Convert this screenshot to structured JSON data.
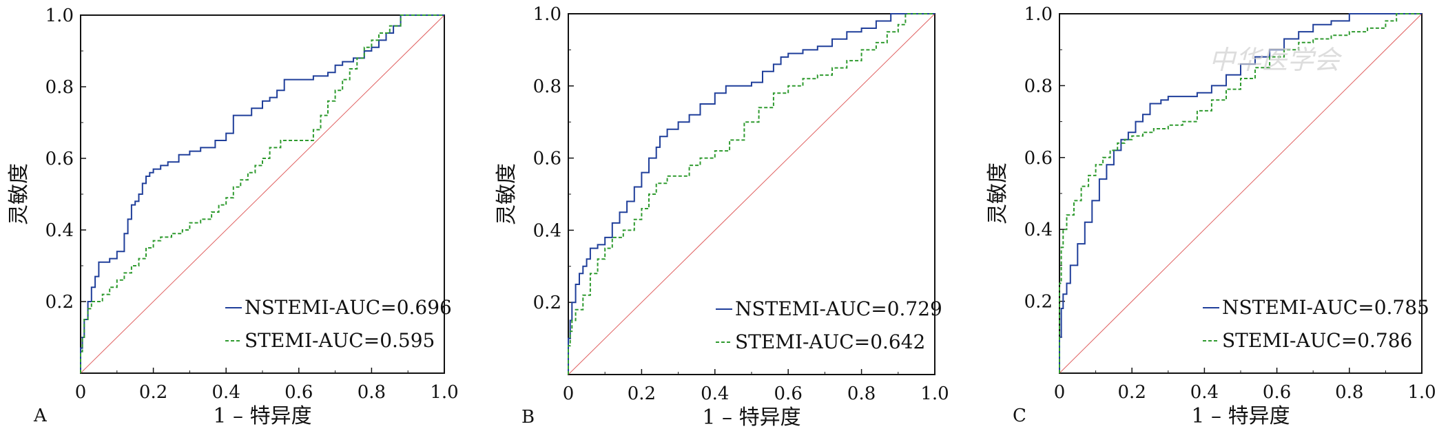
{
  "colors": {
    "nstemi": "#1f3e9a",
    "stemi": "#2e9a2e",
    "diagonal": "#e06060",
    "axis": "#111111"
  },
  "watermark": {
    "text": "中华医学会"
  },
  "chart_data": [
    {
      "type": "line",
      "panel_label": "A",
      "xlabel": "1 – 特异度",
      "ylabel": "灵敏度",
      "xlim": [
        0,
        1
      ],
      "ylim": [
        0,
        1
      ],
      "x_ticks": [
        "0",
        "0.2",
        "0.4",
        "0.6",
        "0.8",
        "1.0"
      ],
      "y_ticks": [
        "0.2",
        "0.4",
        "0.6",
        "0.8",
        "1.0"
      ],
      "legend_position": "bottom-right",
      "legend": [
        "NSTEMI-AUC=0.696",
        "STEMI-AUC=0.595"
      ],
      "series": [
        {
          "name": "NSTEMI-AUC=0.696",
          "style": "solid",
          "x": [
            0,
            0.005,
            0.01,
            0.02,
            0.03,
            0.04,
            0.05,
            0.06,
            0.08,
            0.1,
            0.12,
            0.13,
            0.14,
            0.15,
            0.16,
            0.17,
            0.18,
            0.19,
            0.2,
            0.22,
            0.24,
            0.27,
            0.3,
            0.33,
            0.37,
            0.4,
            0.42,
            0.44,
            0.47,
            0.5,
            0.52,
            0.54,
            0.56,
            0.6,
            0.64,
            0.68,
            0.7,
            0.72,
            0.75,
            0.78,
            0.8,
            0.82,
            0.84,
            0.86,
            0.88,
            0.9,
            1.0
          ],
          "y": [
            0,
            0.07,
            0.1,
            0.15,
            0.2,
            0.24,
            0.27,
            0.31,
            0.31,
            0.32,
            0.34,
            0.39,
            0.43,
            0.47,
            0.48,
            0.5,
            0.53,
            0.55,
            0.56,
            0.57,
            0.58,
            0.59,
            0.61,
            0.62,
            0.63,
            0.65,
            0.67,
            0.72,
            0.72,
            0.74,
            0.76,
            0.77,
            0.79,
            0.82,
            0.82,
            0.83,
            0.84,
            0.86,
            0.87,
            0.88,
            0.9,
            0.91,
            0.93,
            0.95,
            0.97,
            1.0,
            1.0
          ]
        },
        {
          "name": "STEMI-AUC=0.595",
          "style": "dashed",
          "x": [
            0,
            0.005,
            0.01,
            0.02,
            0.03,
            0.04,
            0.06,
            0.08,
            0.1,
            0.12,
            0.14,
            0.16,
            0.18,
            0.2,
            0.22,
            0.25,
            0.28,
            0.3,
            0.33,
            0.36,
            0.38,
            0.4,
            0.42,
            0.44,
            0.46,
            0.48,
            0.5,
            0.52,
            0.55,
            0.58,
            0.6,
            0.64,
            0.66,
            0.68,
            0.7,
            0.72,
            0.74,
            0.76,
            0.78,
            0.8,
            0.82,
            0.85,
            0.88,
            0.91,
            1.0
          ],
          "y": [
            0,
            0.06,
            0.1,
            0.15,
            0.18,
            0.2,
            0.2,
            0.22,
            0.24,
            0.26,
            0.28,
            0.3,
            0.32,
            0.35,
            0.37,
            0.38,
            0.39,
            0.4,
            0.42,
            0.43,
            0.45,
            0.47,
            0.49,
            0.52,
            0.54,
            0.56,
            0.58,
            0.6,
            0.63,
            0.65,
            0.65,
            0.65,
            0.68,
            0.72,
            0.76,
            0.79,
            0.82,
            0.85,
            0.88,
            0.91,
            0.93,
            0.95,
            0.97,
            1.0,
            1.0
          ]
        }
      ],
      "diagonal": true
    },
    {
      "type": "line",
      "panel_label": "B",
      "xlabel": "1 – 特异度",
      "ylabel": "灵敏度",
      "xlim": [
        0,
        1
      ],
      "ylim": [
        0,
        1
      ],
      "x_ticks": [
        "0",
        "0.2",
        "0.4",
        "0.6",
        "0.8",
        "1.0"
      ],
      "y_ticks": [
        "0.2",
        "0.4",
        "0.6",
        "0.8",
        "1.0"
      ],
      "legend_position": "bottom-right",
      "legend": [
        "NSTEMI-AUC=0.729",
        "STEMI-AUC=0.642"
      ],
      "series": [
        {
          "name": "NSTEMI-AUC=0.729",
          "style": "solid",
          "x": [
            0,
            0.005,
            0.01,
            0.02,
            0.03,
            0.04,
            0.05,
            0.06,
            0.08,
            0.1,
            0.12,
            0.14,
            0.16,
            0.18,
            0.2,
            0.22,
            0.24,
            0.25,
            0.27,
            0.3,
            0.33,
            0.36,
            0.4,
            0.43,
            0.46,
            0.5,
            0.53,
            0.56,
            0.58,
            0.6,
            0.64,
            0.68,
            0.72,
            0.76,
            0.8,
            0.84,
            0.88,
            0.9,
            1.0
          ],
          "y": [
            0,
            0.1,
            0.15,
            0.2,
            0.25,
            0.28,
            0.3,
            0.32,
            0.35,
            0.36,
            0.38,
            0.42,
            0.45,
            0.48,
            0.52,
            0.56,
            0.6,
            0.63,
            0.66,
            0.68,
            0.7,
            0.72,
            0.75,
            0.78,
            0.8,
            0.8,
            0.81,
            0.84,
            0.86,
            0.88,
            0.89,
            0.9,
            0.91,
            0.93,
            0.95,
            0.96,
            0.98,
            1.0,
            1.0
          ]
        },
        {
          "name": "STEMI-AUC=0.642",
          "style": "dashed",
          "x": [
            0,
            0.005,
            0.01,
            0.02,
            0.04,
            0.06,
            0.08,
            0.1,
            0.12,
            0.15,
            0.18,
            0.2,
            0.22,
            0.24,
            0.27,
            0.3,
            0.33,
            0.36,
            0.4,
            0.44,
            0.48,
            0.52,
            0.56,
            0.6,
            0.64,
            0.68,
            0.72,
            0.76,
            0.8,
            0.84,
            0.87,
            0.9,
            0.92,
            0.95,
            1.0
          ],
          "y": [
            0,
            0.08,
            0.12,
            0.15,
            0.18,
            0.22,
            0.28,
            0.32,
            0.35,
            0.38,
            0.4,
            0.43,
            0.46,
            0.5,
            0.53,
            0.55,
            0.55,
            0.58,
            0.6,
            0.62,
            0.65,
            0.7,
            0.74,
            0.78,
            0.8,
            0.82,
            0.83,
            0.85,
            0.87,
            0.9,
            0.92,
            0.95,
            0.97,
            1.0,
            1.0
          ]
        }
      ],
      "diagonal": true
    },
    {
      "type": "line",
      "panel_label": "C",
      "xlabel": "1 – 特异度",
      "ylabel": "灵敏度",
      "xlim": [
        0,
        1
      ],
      "ylim": [
        0,
        1
      ],
      "x_ticks": [
        "0",
        "0.2",
        "0.4",
        "0.6",
        "0.8",
        "1.0"
      ],
      "y_ticks": [
        "0.2",
        "0.4",
        "0.6",
        "0.8",
        "1.0"
      ],
      "legend_position": "bottom-right",
      "legend": [
        "NSTEMI-AUC=0.785",
        "STEMI-AUC=0.786"
      ],
      "series": [
        {
          "name": "NSTEMI-AUC=0.785",
          "style": "solid",
          "x": [
            0,
            0.005,
            0.01,
            0.02,
            0.03,
            0.05,
            0.07,
            0.09,
            0.11,
            0.13,
            0.15,
            0.17,
            0.19,
            0.21,
            0.23,
            0.25,
            0.28,
            0.3,
            0.34,
            0.38,
            0.42,
            0.46,
            0.5,
            0.54,
            0.58,
            0.62,
            0.66,
            0.7,
            0.75,
            0.8,
            0.85,
            0.9,
            0.95,
            1.0
          ],
          "y": [
            0,
            0.1,
            0.18,
            0.22,
            0.25,
            0.3,
            0.36,
            0.42,
            0.48,
            0.54,
            0.58,
            0.62,
            0.65,
            0.67,
            0.7,
            0.72,
            0.75,
            0.76,
            0.77,
            0.77,
            0.78,
            0.8,
            0.83,
            0.86,
            0.88,
            0.9,
            0.93,
            0.95,
            0.97,
            0.98,
            1.0,
            1.0,
            1.0,
            1.0
          ]
        },
        {
          "name": "STEMI-AUC=0.786",
          "style": "dashed",
          "x": [
            0,
            0.005,
            0.01,
            0.02,
            0.04,
            0.06,
            0.08,
            0.1,
            0.12,
            0.14,
            0.16,
            0.18,
            0.2,
            0.23,
            0.26,
            0.3,
            0.34,
            0.38,
            0.42,
            0.46,
            0.5,
            0.54,
            0.58,
            0.62,
            0.66,
            0.7,
            0.75,
            0.8,
            0.85,
            0.9,
            0.93,
            0.96,
            1.0
          ],
          "y": [
            0,
            0.25,
            0.35,
            0.4,
            0.44,
            0.48,
            0.52,
            0.55,
            0.58,
            0.6,
            0.62,
            0.64,
            0.65,
            0.66,
            0.67,
            0.68,
            0.69,
            0.7,
            0.73,
            0.76,
            0.79,
            0.82,
            0.85,
            0.88,
            0.9,
            0.92,
            0.93,
            0.94,
            0.95,
            0.96,
            0.98,
            1.0,
            1.0
          ]
        }
      ],
      "diagonal": true
    }
  ]
}
